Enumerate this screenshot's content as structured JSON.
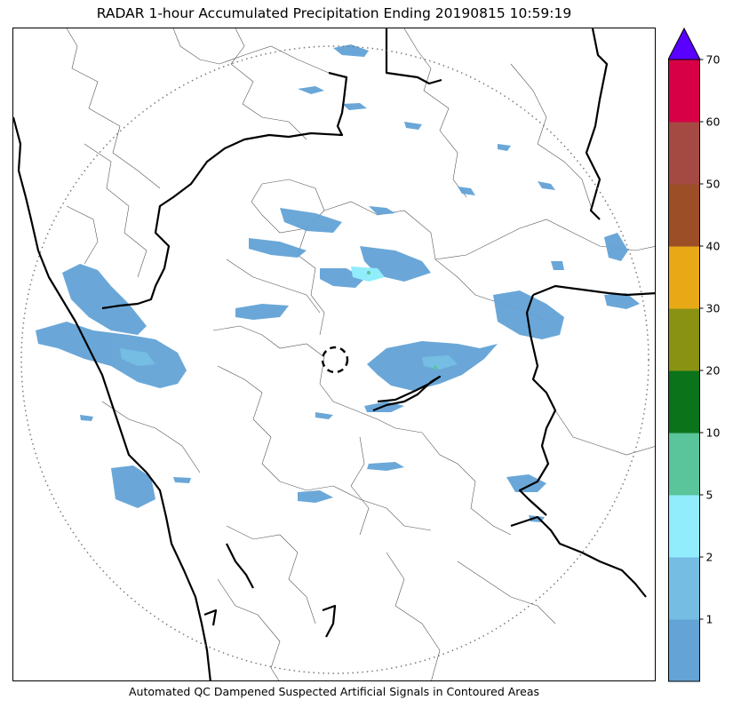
{
  "title": "RADAR 1-hour Accumulated Precipitation Ending 20190815 10:59:19",
  "footnote": "Automated QC Dampened Suspected Artificial Signals in Contoured Areas",
  "map": {
    "range_ring": "dotted",
    "radar_marker": "dashed-circle"
  },
  "colorbar": {
    "extend": "max",
    "extend_color": "#5a00ff",
    "ticks": [
      "1",
      "2",
      "5",
      "10",
      "20",
      "30",
      "40",
      "50",
      "60",
      "70"
    ],
    "bins": [
      {
        "color": "#63a3d6"
      },
      {
        "color": "#75bde3"
      },
      {
        "color": "#91ecfc"
      },
      {
        "color": "#5ac49b"
      },
      {
        "color": "#0b7319"
      },
      {
        "color": "#8a9214"
      },
      {
        "color": "#e9a916"
      },
      {
        "color": "#9c4e26"
      },
      {
        "color": "#a54a43"
      },
      {
        "color": "#d70046"
      }
    ]
  }
}
